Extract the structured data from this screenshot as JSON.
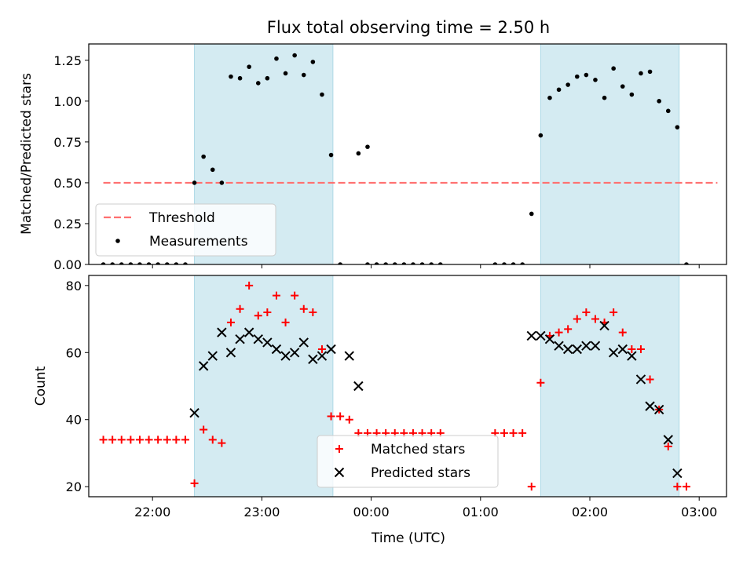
{
  "title": "Flux total observing time = 2.50 h",
  "colors": {
    "band": "#add8e6",
    "threshold": "#ff7070",
    "measurement": "#000000",
    "matched": "#ff0000",
    "predicted": "#000000"
  },
  "chart_data": [
    {
      "type": "scatter",
      "ylabel": "Matched/Predicted stars",
      "xlabel": "",
      "xlim": [
        "21:25",
        "03:15"
      ],
      "ylim": [
        0,
        1.35
      ],
      "x_ticks": [
        "22:00",
        "23:00",
        "00:00",
        "01:00",
        "02:00",
        "03:00"
      ],
      "y_ticks": [
        "0.00",
        "0.25",
        "0.50",
        "0.75",
        "1.00",
        "1.25"
      ],
      "y_tick_values": [
        0,
        0.25,
        0.5,
        0.75,
        1.0,
        1.25
      ],
      "shaded_intervals": [
        [
          "22:23",
          "23:39"
        ],
        [
          "01:33",
          "02:49"
        ]
      ],
      "threshold": {
        "name": "Threshold",
        "value": 0.5,
        "x_range": [
          "21:33",
          "03:10"
        ],
        "style": "dashed"
      },
      "legend_position": "lower left",
      "series": [
        {
          "name": "Measurements",
          "marker": "dot",
          "points": [
            [
              "21:33",
              0
            ],
            [
              "21:38",
              0
            ],
            [
              "21:43",
              0
            ],
            [
              "21:48",
              0
            ],
            [
              "21:53",
              0
            ],
            [
              "21:58",
              0
            ],
            [
              "22:03",
              0
            ],
            [
              "22:08",
              0
            ],
            [
              "22:13",
              0
            ],
            [
              "22:18",
              0
            ],
            [
              "22:23",
              0.5
            ],
            [
              "22:28",
              0.66
            ],
            [
              "22:33",
              0.58
            ],
            [
              "22:38",
              0.5
            ],
            [
              "22:43",
              1.15
            ],
            [
              "22:48",
              1.14
            ],
            [
              "22:53",
              1.21
            ],
            [
              "22:58",
              1.11
            ],
            [
              "23:03",
              1.14
            ],
            [
              "23:08",
              1.26
            ],
            [
              "23:13",
              1.17
            ],
            [
              "23:18",
              1.28
            ],
            [
              "23:23",
              1.16
            ],
            [
              "23:28",
              1.24
            ],
            [
              "23:33",
              1.04
            ],
            [
              "23:38",
              0.67
            ],
            [
              "23:43",
              0
            ],
            [
              "23:53",
              0.68
            ],
            [
              "23:58",
              0.72
            ],
            [
              "23:58",
              0
            ],
            [
              "00:03",
              0
            ],
            [
              "00:08",
              0
            ],
            [
              "00:13",
              0
            ],
            [
              "00:18",
              0
            ],
            [
              "00:23",
              0
            ],
            [
              "00:28",
              0
            ],
            [
              "00:33",
              0
            ],
            [
              "00:38",
              0
            ],
            [
              "01:08",
              0
            ],
            [
              "01:13",
              0
            ],
            [
              "01:18",
              0
            ],
            [
              "01:23",
              0
            ],
            [
              "01:28",
              0.31
            ],
            [
              "01:33",
              0.79
            ],
            [
              "01:38",
              1.02
            ],
            [
              "01:43",
              1.07
            ],
            [
              "01:48",
              1.1
            ],
            [
              "01:53",
              1.15
            ],
            [
              "01:58",
              1.16
            ],
            [
              "02:03",
              1.13
            ],
            [
              "02:08",
              1.02
            ],
            [
              "02:13",
              1.2
            ],
            [
              "02:18",
              1.09
            ],
            [
              "02:23",
              1.04
            ],
            [
              "02:28",
              1.17
            ],
            [
              "02:33",
              1.18
            ],
            [
              "02:38",
              1.0
            ],
            [
              "02:43",
              0.94
            ],
            [
              "02:48",
              0.84
            ],
            [
              "02:53",
              0
            ]
          ]
        }
      ]
    },
    {
      "type": "scatter",
      "ylabel": "Count",
      "xlabel": "Time (UTC)",
      "xlim": [
        "21:25",
        "03:15"
      ],
      "ylim": [
        17,
        83
      ],
      "x_ticks": [
        "22:00",
        "23:00",
        "00:00",
        "01:00",
        "02:00",
        "03:00"
      ],
      "y_ticks": [
        "20",
        "40",
        "60",
        "80"
      ],
      "y_tick_values": [
        20,
        40,
        60,
        80
      ],
      "shaded_intervals": [
        [
          "22:23",
          "23:39"
        ],
        [
          "01:33",
          "02:49"
        ]
      ],
      "legend_position": "lower center",
      "series": [
        {
          "name": "Matched stars",
          "marker": "plus",
          "points": [
            [
              "21:33",
              34
            ],
            [
              "21:38",
              34
            ],
            [
              "21:43",
              34
            ],
            [
              "21:48",
              34
            ],
            [
              "21:53",
              34
            ],
            [
              "21:58",
              34
            ],
            [
              "22:03",
              34
            ],
            [
              "22:08",
              34
            ],
            [
              "22:13",
              34
            ],
            [
              "22:18",
              34
            ],
            [
              "22:23",
              21
            ],
            [
              "22:28",
              37
            ],
            [
              "22:33",
              34
            ],
            [
              "22:38",
              33
            ],
            [
              "22:43",
              69
            ],
            [
              "22:48",
              73
            ],
            [
              "22:53",
              80
            ],
            [
              "22:58",
              71
            ],
            [
              "23:03",
              72
            ],
            [
              "23:08",
              77
            ],
            [
              "23:13",
              69
            ],
            [
              "23:18",
              77
            ],
            [
              "23:23",
              73
            ],
            [
              "23:28",
              72
            ],
            [
              "23:33",
              61
            ],
            [
              "23:38",
              41
            ],
            [
              "23:43",
              41
            ],
            [
              "23:48",
              40
            ],
            [
              "23:53",
              36
            ],
            [
              "23:58",
              36
            ],
            [
              "00:03",
              36
            ],
            [
              "00:08",
              36
            ],
            [
              "00:13",
              36
            ],
            [
              "00:18",
              36
            ],
            [
              "00:23",
              36
            ],
            [
              "00:28",
              36
            ],
            [
              "00:33",
              36
            ],
            [
              "00:38",
              36
            ],
            [
              "01:08",
              36
            ],
            [
              "01:13",
              36
            ],
            [
              "01:18",
              36
            ],
            [
              "01:23",
              36
            ],
            [
              "01:28",
              20
            ],
            [
              "01:33",
              51
            ],
            [
              "01:38",
              65
            ],
            [
              "01:43",
              66
            ],
            [
              "01:48",
              67
            ],
            [
              "01:53",
              70
            ],
            [
              "01:58",
              72
            ],
            [
              "02:03",
              70
            ],
            [
              "02:08",
              69
            ],
            [
              "02:13",
              72
            ],
            [
              "02:18",
              66
            ],
            [
              "02:23",
              61
            ],
            [
              "02:28",
              61
            ],
            [
              "02:33",
              52
            ],
            [
              "02:38",
              43
            ],
            [
              "02:43",
              32
            ],
            [
              "02:48",
              20
            ],
            [
              "02:53",
              20
            ]
          ]
        },
        {
          "name": "Predicted stars",
          "marker": "x",
          "points": [
            [
              "22:23",
              42
            ],
            [
              "22:28",
              56
            ],
            [
              "22:33",
              59
            ],
            [
              "22:38",
              66
            ],
            [
              "22:43",
              60
            ],
            [
              "22:48",
              64
            ],
            [
              "22:53",
              66
            ],
            [
              "22:58",
              64
            ],
            [
              "23:03",
              63
            ],
            [
              "23:08",
              61
            ],
            [
              "23:13",
              59
            ],
            [
              "23:18",
              60
            ],
            [
              "23:23",
              63
            ],
            [
              "23:28",
              58
            ],
            [
              "23:33",
              59
            ],
            [
              "23:38",
              61
            ],
            [
              "23:48",
              59
            ],
            [
              "23:53",
              50
            ],
            [
              "01:28",
              65
            ],
            [
              "01:33",
              65
            ],
            [
              "01:38",
              64
            ],
            [
              "01:43",
              62
            ],
            [
              "01:48",
              61
            ],
            [
              "01:53",
              61
            ],
            [
              "01:58",
              62
            ],
            [
              "02:03",
              62
            ],
            [
              "02:08",
              68
            ],
            [
              "02:13",
              60
            ],
            [
              "02:18",
              61
            ],
            [
              "02:23",
              59
            ],
            [
              "02:28",
              52
            ],
            [
              "02:33",
              44
            ],
            [
              "02:38",
              43
            ],
            [
              "02:43",
              34
            ],
            [
              "02:48",
              24
            ]
          ]
        }
      ]
    }
  ]
}
